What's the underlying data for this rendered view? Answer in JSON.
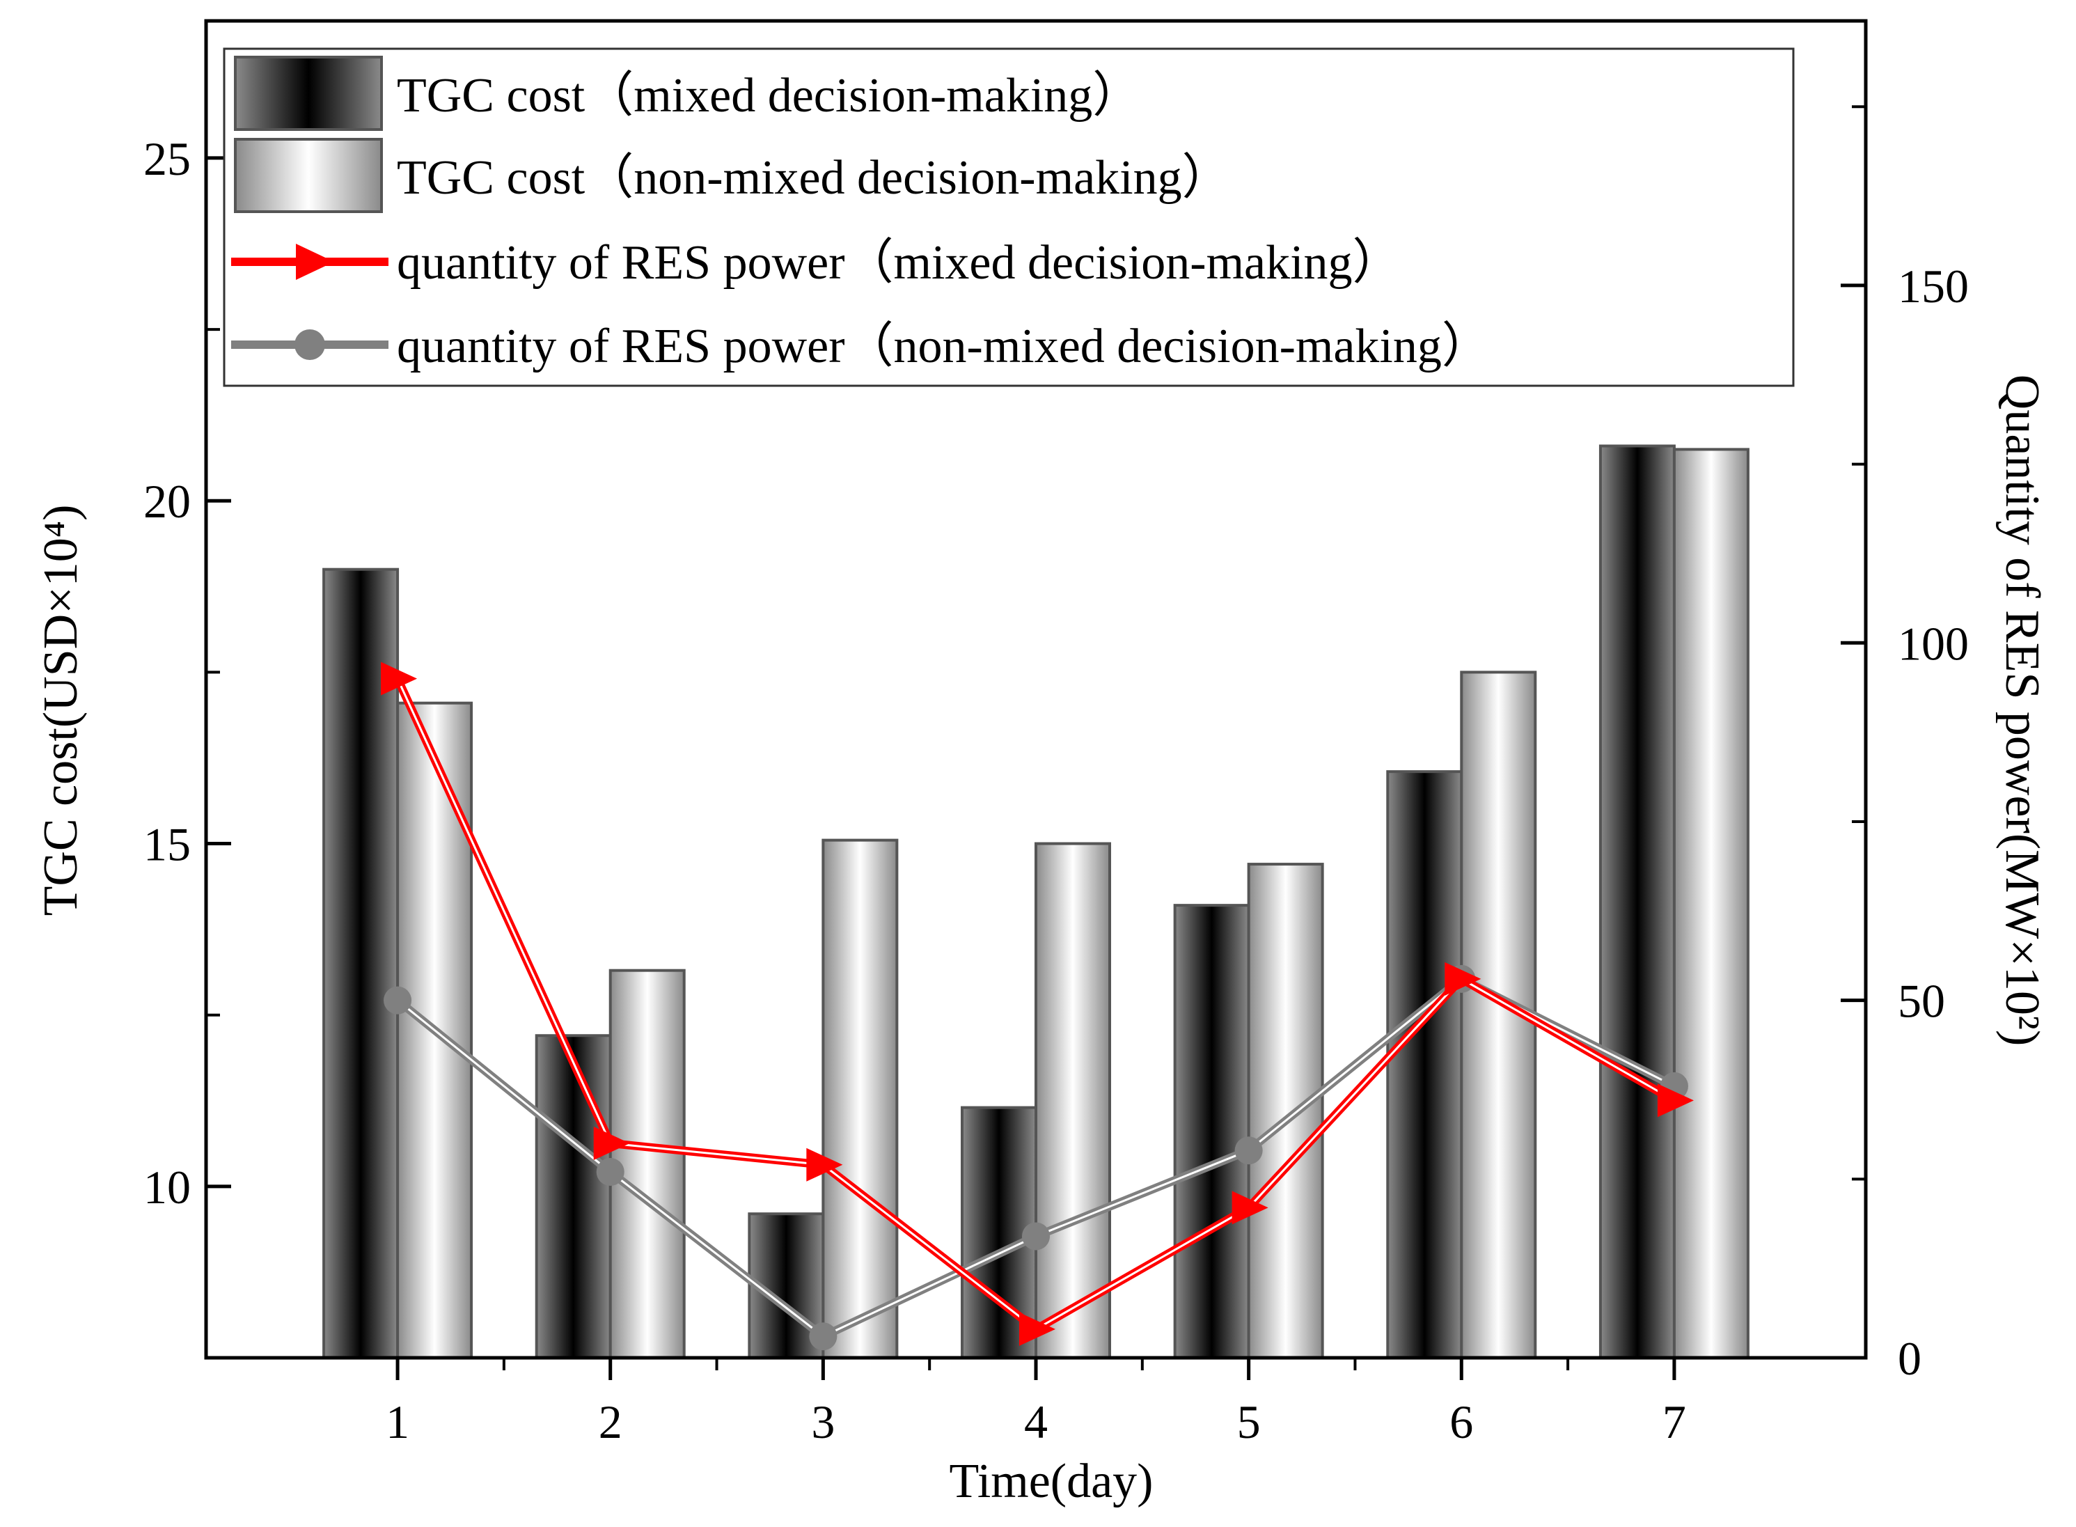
{
  "chart_data": {
    "type": "bar",
    "categories": [
      "1",
      "2",
      "3",
      "4",
      "5",
      "6",
      "7"
    ],
    "xlabel": "Time(day)",
    "ylabel": "TGC cost(USD×10⁴)",
    "y2label": "Quantity of RES power(MW×10²)",
    "ylim": [
      7.5,
      27
    ],
    "y2lim": [
      0,
      187
    ],
    "yticks": [
      "10",
      "15",
      "20",
      "25"
    ],
    "y2ticks": [
      "0",
      "50",
      "100",
      "150"
    ],
    "legend_position": "top",
    "series": [
      {
        "name": "TGC cost（mixed decision-making）",
        "kind": "bar",
        "axis": "left",
        "values": [
          19.0,
          12.2,
          9.6,
          11.15,
          14.1,
          16.05,
          20.8
        ]
      },
      {
        "name": "TGC cost（non-mixed decision-making）",
        "kind": "bar",
        "axis": "left",
        "values": [
          17.05,
          13.15,
          15.05,
          15.0,
          14.7,
          17.5,
          20.75
        ]
      },
      {
        "name": "quantity of RES power（mixed decision-making）",
        "kind": "line",
        "axis": "right",
        "marker": "triangle-right",
        "color": "#ff0000",
        "values": [
          95,
          30,
          27,
          4,
          21,
          53,
          36
        ]
      },
      {
        "name": "quantity of RES power（non-mixed decision-making）",
        "kind": "line",
        "axis": "right",
        "marker": "circle",
        "color": "#808080",
        "values": [
          50,
          26,
          3,
          17,
          29,
          53,
          38
        ]
      }
    ]
  },
  "colors": {
    "red_line": "#ff0000",
    "gray_line": "#808080",
    "bar_dark": "#000000",
    "bar_light": "#ffffff",
    "bar_border": "#555555"
  }
}
